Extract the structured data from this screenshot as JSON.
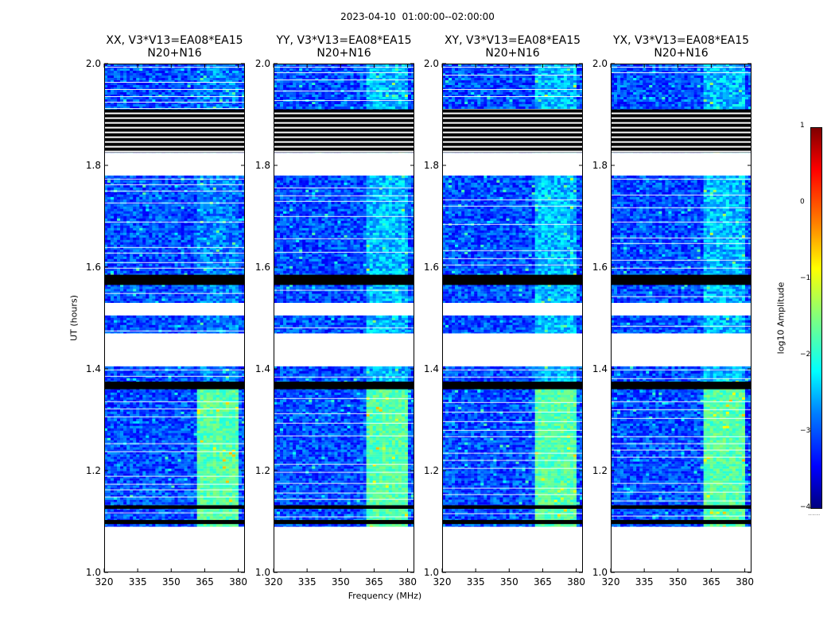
{
  "suptitle": "2023-04-10  01:00:00--02:00:00",
  "xlabel": "Frequency (MHz)",
  "ylabel": "UT (hours)",
  "colorbar": {
    "label": "log10 Amplitude",
    "ticks": [
      "1",
      "0",
      "−1",
      "−2",
      "−3",
      "−4"
    ],
    "range": [
      -4,
      1
    ],
    "colormap": [
      "#00007f",
      "#0000ff",
      "#007fff",
      "#00ffff",
      "#7fff7f",
      "#ffff00",
      "#ff7f00",
      "#ff0000",
      "#7f0000"
    ]
  },
  "chart_data": {
    "type": "heatmap",
    "xlim": [
      320,
      383
    ],
    "ylim": [
      1.0,
      2.0
    ],
    "xticks": [
      320,
      335,
      350,
      365,
      380
    ],
    "xtick_labels": [
      "320",
      "335",
      "350",
      "365",
      "380"
    ],
    "yticks": [
      1.0,
      1.2,
      1.4,
      1.6,
      1.8,
      2.0
    ],
    "ytick_labels": [
      "1.0",
      "1.2",
      "1.4",
      "1.6",
      "1.8",
      "2.0"
    ],
    "panels": [
      {
        "title": "XX, V3*V13=EA08*EA15",
        "subtitle": "N20+N16"
      },
      {
        "title": "YY, V3*V13=EA08*EA15",
        "subtitle": "N20+N16"
      },
      {
        "title": "XY, V3*V13=EA08*EA15",
        "subtitle": "N20+N16"
      },
      {
        "title": "YX, V3*V13=EA08*EA15",
        "subtitle": "N20+N16"
      }
    ],
    "data_segments_ut": [
      [
        1.09,
        1.26
      ],
      [
        1.26,
        1.405
      ],
      [
        1.47,
        1.505
      ],
      [
        1.53,
        1.585
      ],
      [
        1.585,
        1.78
      ],
      [
        1.825,
        2.0
      ]
    ],
    "flagged_bands_ut": [
      [
        1.095,
        1.103
      ],
      [
        1.125,
        1.132
      ],
      [
        1.36,
        1.375
      ],
      [
        1.565,
        1.585
      ],
      [
        1.825,
        1.91
      ]
    ],
    "gaps_ut": [
      [
        1.0,
        1.09
      ],
      [
        1.405,
        1.47
      ],
      [
        1.505,
        1.53
      ],
      [
        1.78,
        1.825
      ]
    ],
    "rfi_band_mhz": [
      362,
      380
    ],
    "typical_log_amplitude": -3.0,
    "rfi_log_amplitude": -1.7
  }
}
